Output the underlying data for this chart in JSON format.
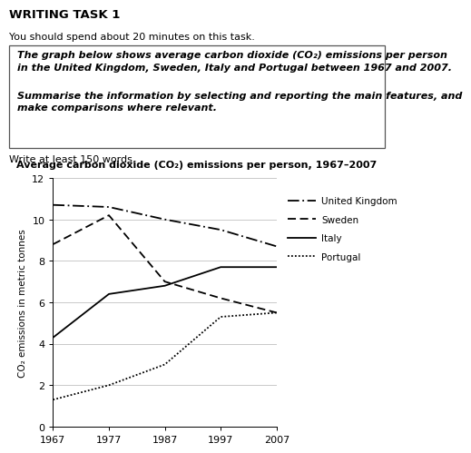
{
  "title": "Average carbon dioxide (CO₂) emissions per person, 1967–2007",
  "writing_task_title": "WRITING TASK 1",
  "writing_task_subtitle": "You should spend about 20 minutes on this task.",
  "box_text_1": "The graph below shows average carbon dioxide (CO₂) emissions per person\nin the United Kingdom, Sweden, Italy and Portugal between 1967 and 2007.",
  "box_text_2": "Summarise the information by selecting and reporting the main features, and\nmake comparisons where relevant.",
  "footer_text": "Write at least 150 words.",
  "years": [
    1967,
    1977,
    1987,
    1997,
    2007
  ],
  "uk": [
    10.7,
    10.6,
    10.0,
    9.5,
    8.7
  ],
  "sweden": [
    8.8,
    10.2,
    7.0,
    6.2,
    5.5
  ],
  "italy": [
    4.3,
    6.4,
    6.8,
    7.7,
    7.7
  ],
  "portugal": [
    1.3,
    2.0,
    3.0,
    5.3,
    5.5
  ],
  "ylabel": "CO₂ emissions in metric tonnes",
  "ylim": [
    0,
    12
  ],
  "yticks": [
    0,
    2,
    4,
    6,
    8,
    10,
    12
  ],
  "xlim": [
    1967,
    2007
  ],
  "xticks": [
    1967,
    1977,
    1987,
    1997,
    2007
  ],
  "legend_labels": [
    "United Kingdom",
    "Sweden",
    "Italy",
    "Portugal"
  ],
  "background_color": "#ffffff"
}
